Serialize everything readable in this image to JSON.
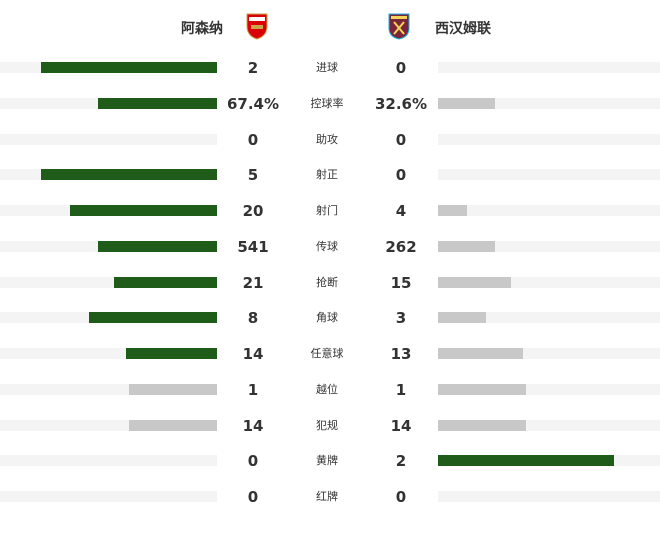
{
  "home": {
    "name": "阿森纳",
    "crest": "arsenal-crest"
  },
  "away": {
    "name": "西汉姆联",
    "crest": "west-ham-crest"
  },
  "colors": {
    "lead": "#1f5c1a",
    "neutral": "#c8c8c8",
    "track": "#f4f4f4"
  },
  "stats": [
    {
      "label": "进球",
      "home": "2",
      "away": "0",
      "home_share": 1.0,
      "away_share": 0.0
    },
    {
      "label": "控球率",
      "home": "67.4%",
      "away": "32.6%",
      "home_share": 0.674,
      "away_share": 0.326
    },
    {
      "label": "助攻",
      "home": "0",
      "away": "0",
      "home_share": 0,
      "away_share": 0
    },
    {
      "label": "射正",
      "home": "5",
      "away": "0",
      "home_share": 1.0,
      "away_share": 0.0
    },
    {
      "label": "射门",
      "home": "20",
      "away": "4",
      "home_share": 0.833,
      "away_share": 0.167
    },
    {
      "label": "传球",
      "home": "541",
      "away": "262",
      "home_share": 0.674,
      "away_share": 0.326
    },
    {
      "label": "抢断",
      "home": "21",
      "away": "15",
      "home_share": 0.583,
      "away_share": 0.417
    },
    {
      "label": "角球",
      "home": "8",
      "away": "3",
      "home_share": 0.727,
      "away_share": 0.273
    },
    {
      "label": "任意球",
      "home": "14",
      "away": "13",
      "home_share": 0.519,
      "away_share": 0.481
    },
    {
      "label": "越位",
      "home": "1",
      "away": "1",
      "home_share": 0.5,
      "away_share": 0.5
    },
    {
      "label": "犯规",
      "home": "14",
      "away": "14",
      "home_share": 0.5,
      "away_share": 0.5
    },
    {
      "label": "黄牌",
      "home": "0",
      "away": "2",
      "home_share": 0.0,
      "away_share": 1.0
    },
    {
      "label": "红牌",
      "home": "0",
      "away": "0",
      "home_share": 0,
      "away_share": 0
    }
  ]
}
